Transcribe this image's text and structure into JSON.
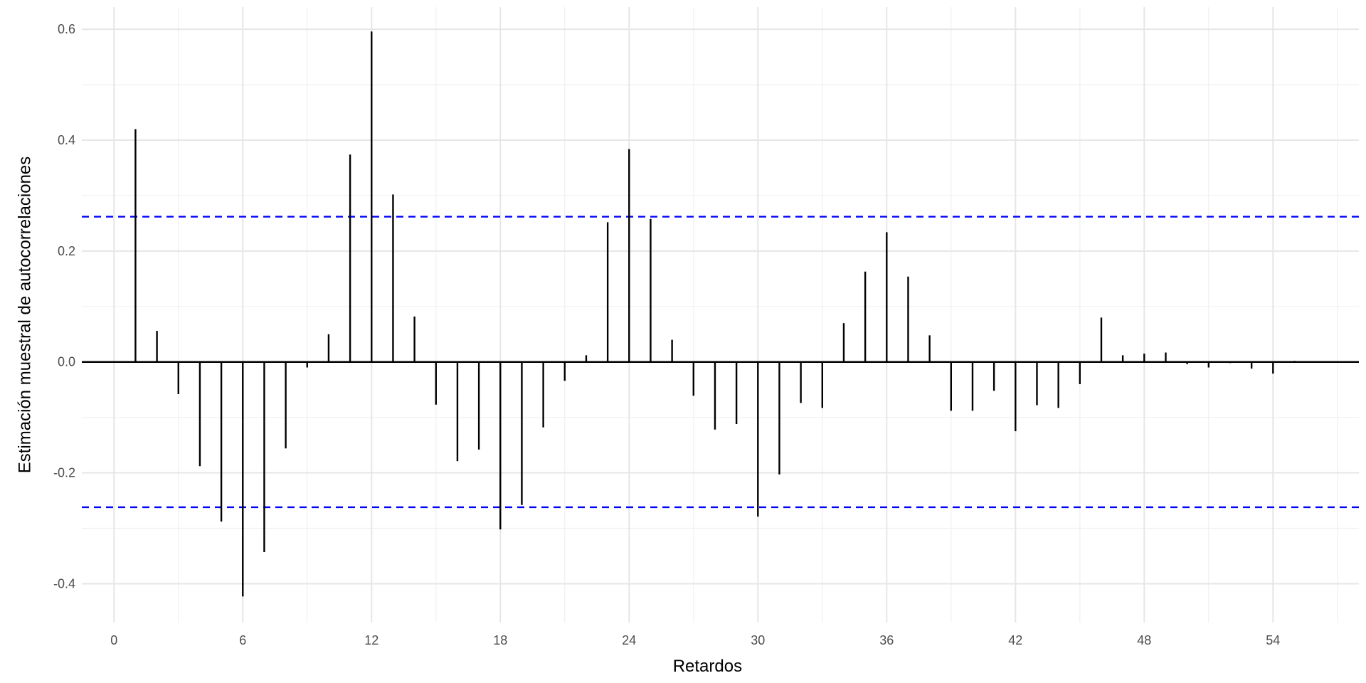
{
  "chart_data": {
    "type": "bar",
    "subtype": "autocorrelation-function",
    "title": "",
    "xlabel": "Retardos",
    "ylabel": "Estimación muestral de autocorrelaciones",
    "xlim": [
      -1.5,
      58
    ],
    "ylim": [
      -0.47,
      0.64
    ],
    "x_ticks": [
      0,
      6,
      12,
      18,
      24,
      30,
      36,
      42,
      48,
      54
    ],
    "x_tick_labels": [
      "0",
      "6",
      "12",
      "18",
      "24",
      "30",
      "36",
      "42",
      "48",
      "54"
    ],
    "y_ticks": [
      -0.4,
      -0.2,
      0.0,
      0.2,
      0.4,
      0.6
    ],
    "y_tick_labels": [
      "-0.4",
      "-0.2",
      "0.0",
      "0.2",
      "0.4",
      "0.6"
    ],
    "grid": true,
    "legend": "none",
    "lags": [
      1,
      2,
      3,
      4,
      5,
      6,
      7,
      8,
      9,
      10,
      11,
      12,
      13,
      14,
      15,
      16,
      17,
      18,
      19,
      20,
      21,
      22,
      23,
      24,
      25,
      26,
      27,
      28,
      29,
      30,
      31,
      32,
      33,
      34,
      35,
      36,
      37,
      38,
      39,
      40,
      41,
      42,
      43,
      44,
      45,
      46,
      47,
      48,
      49,
      50,
      51,
      52,
      53,
      54,
      55
    ],
    "values": [
      0.42,
      0.056,
      -0.058,
      -0.188,
      -0.288,
      -0.423,
      -0.343,
      -0.156,
      -0.01,
      0.05,
      0.374,
      0.596,
      0.302,
      0.082,
      -0.077,
      -0.179,
      -0.158,
      -0.302,
      -0.258,
      -0.118,
      -0.034,
      0.012,
      0.252,
      0.384,
      0.258,
      0.04,
      -0.061,
      -0.122,
      -0.112,
      -0.279,
      -0.203,
      -0.074,
      -0.083,
      0.07,
      0.163,
      0.234,
      0.154,
      0.048,
      -0.088,
      -0.088,
      -0.052,
      -0.125,
      -0.078,
      -0.083,
      -0.04,
      0.08,
      0.012,
      0.015,
      0.017,
      -0.004,
      -0.01,
      -0.002,
      -0.012,
      -0.021,
      0.002
    ],
    "confidence_limits": [
      0.262,
      -0.262
    ],
    "colors": {
      "bars": "#000000",
      "confidence_lines": "#0000ff",
      "grid": "#e6e6e6"
    }
  }
}
